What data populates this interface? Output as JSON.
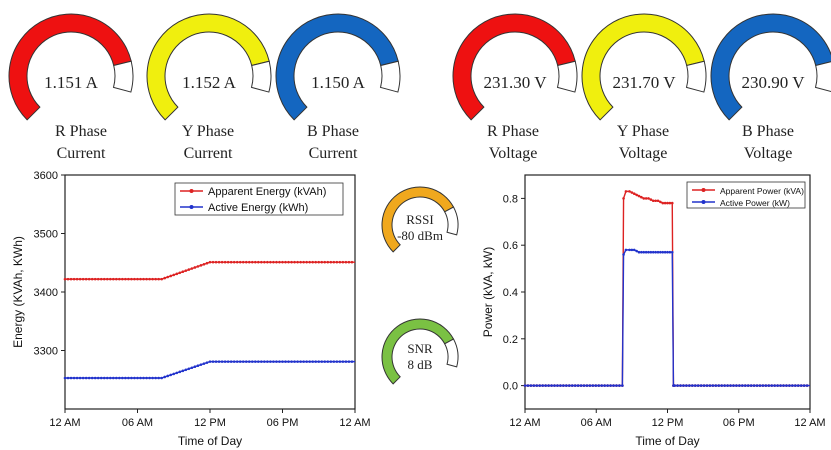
{
  "gauges": [
    {
      "id": "r-current",
      "value": "1.151 A",
      "label_line1": "R Phase",
      "label_line2": "Current",
      "color": "#ee1111",
      "fill": 0.88
    },
    {
      "id": "y-current",
      "value": "1.152 A",
      "label_line1": "Y Phase",
      "label_line2": "Current",
      "color": "#f0ef0e",
      "fill": 0.88
    },
    {
      "id": "b-current",
      "value": "1.150 A",
      "label_line1": "B Phase",
      "label_line2": "Current",
      "color": "#1466c0",
      "fill": 0.88
    },
    {
      "id": "r-voltage",
      "value": "231.30 V",
      "label_line1": "R Phase",
      "label_line2": "Voltage",
      "color": "#ee1111",
      "fill": 0.88
    },
    {
      "id": "y-voltage",
      "value": "231.70 V",
      "label_line1": "Y Phase",
      "label_line2": "Voltage",
      "color": "#f0ef0e",
      "fill": 0.88
    },
    {
      "id": "b-voltage",
      "value": "230.90 V",
      "label_line1": "B Phase",
      "label_line2": "Voltage",
      "color": "#1466c0",
      "fill": 0.88
    }
  ],
  "small_gauges": [
    {
      "id": "rssi",
      "line1": "RSSI",
      "line2": "-80 dBm",
      "color": "#f0a81e",
      "fill": 0.82
    },
    {
      "id": "snr",
      "line1": "SNR",
      "line2": "8 dB",
      "color": "#7ac143",
      "fill": 0.82
    }
  ],
  "chart_data": [
    {
      "type": "line",
      "xlabel": "Time of Day",
      "ylabel": "Energy (KVAh, KWh)",
      "x_ticks": [
        "12 AM",
        "06 AM",
        "12 PM",
        "06 PM",
        "12 AM"
      ],
      "xlim": [
        0,
        24
      ],
      "ylim": [
        3200,
        3600
      ],
      "y_ticks": [
        "3300",
        "3400",
        "3500",
        "3600"
      ],
      "series": [
        {
          "name": "Apparent Energy (kVAh)",
          "color": "#dd2222",
          "x": [
            0,
            8,
            12,
            24
          ],
          "y": [
            3422,
            3422,
            3451,
            3451
          ]
        },
        {
          "name": "Active Energy (kWh)",
          "color": "#2233cc",
          "x": [
            0,
            8,
            12,
            24
          ],
          "y": [
            3253,
            3253,
            3281,
            3281
          ]
        }
      ]
    },
    {
      "type": "line",
      "xlabel": "Time of Day",
      "ylabel": "Power (kVA, kW)",
      "x_ticks": [
        "12 AM",
        "06 AM",
        "12 PM",
        "06 PM",
        "12 AM"
      ],
      "xlim": [
        0,
        24
      ],
      "ylim": [
        -0.1,
        0.9
      ],
      "y_ticks": [
        "0.0",
        "0.2",
        "0.4",
        "0.6",
        "0.8"
      ],
      "series": [
        {
          "name": "Apparent Power (kVA)",
          "color": "#dd2222",
          "x": [
            0,
            8.2,
            8.3,
            8.5,
            8.8,
            9.2,
            9.6,
            10,
            10.4,
            10.8,
            11.2,
            11.6,
            12,
            12.4,
            12.5,
            12.6,
            24
          ],
          "y": [
            0,
            0,
            0.8,
            0.83,
            0.83,
            0.82,
            0.81,
            0.8,
            0.8,
            0.79,
            0.79,
            0.78,
            0.78,
            0.78,
            0.0,
            0,
            0
          ]
        },
        {
          "name": "Active Power (kW)",
          "color": "#2233cc",
          "x": [
            0,
            8.2,
            8.3,
            8.5,
            8.8,
            9.2,
            9.6,
            10,
            10.4,
            10.8,
            11.2,
            11.6,
            12,
            12.4,
            12.5,
            12.6,
            24
          ],
          "y": [
            0,
            0,
            0.56,
            0.58,
            0.58,
            0.58,
            0.57,
            0.57,
            0.57,
            0.57,
            0.57,
            0.57,
            0.57,
            0.57,
            0.0,
            0,
            0
          ]
        }
      ]
    }
  ]
}
